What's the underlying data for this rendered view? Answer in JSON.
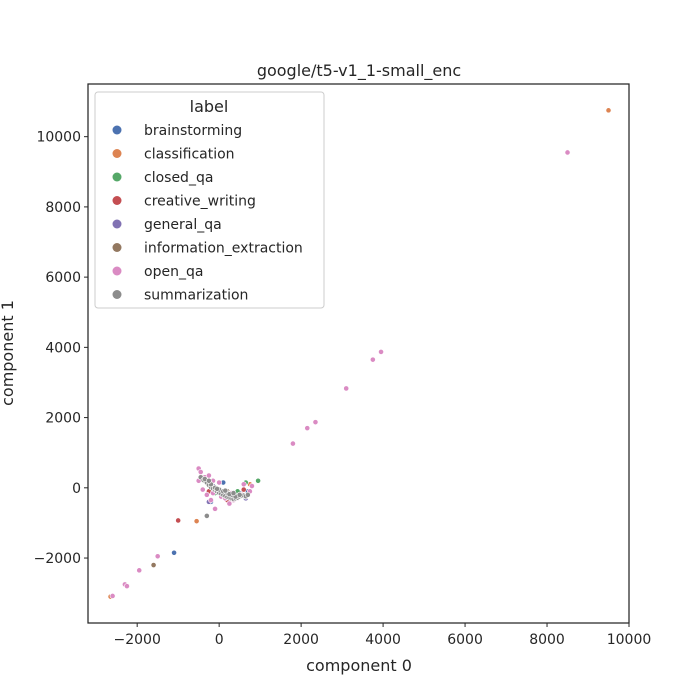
{
  "chart_data": {
    "type": "scatter",
    "title": "google/t5-v1_1-small_enc",
    "xlabel": "component 0",
    "ylabel": "component 1",
    "xlim": [
      -3200,
      10000
    ],
    "ylim": [
      -3850,
      11500
    ],
    "xticks": [
      -2000,
      0,
      2000,
      4000,
      6000,
      8000,
      10000
    ],
    "yticks": [
      -2000,
      0,
      2000,
      4000,
      6000,
      8000,
      10000
    ],
    "grid": false,
    "legend": {
      "title": "label",
      "placement": "top-left"
    },
    "series": [
      {
        "name": "brainstorming",
        "color": "#4c72b0",
        "points": [
          [
            -1100,
            -1850
          ],
          [
            700,
            -100
          ],
          [
            -200,
            -400
          ],
          [
            300,
            -300
          ],
          [
            100,
            150
          ],
          [
            -300,
            200
          ],
          [
            500,
            -150
          ],
          [
            -50,
            -50
          ]
        ]
      },
      {
        "name": "classification",
        "color": "#dd8452",
        "points": [
          [
            9500,
            10750
          ],
          [
            -550,
            -950
          ],
          [
            -2650,
            -3100
          ],
          [
            750,
            100
          ],
          [
            300,
            -200
          ],
          [
            -400,
            300
          ],
          [
            100,
            -100
          ]
        ]
      },
      {
        "name": "closed_qa",
        "color": "#55a868",
        "points": [
          [
            950,
            200
          ],
          [
            650,
            150
          ],
          [
            450,
            -100
          ],
          [
            -100,
            -150
          ],
          [
            200,
            -250
          ],
          [
            -300,
            150
          ]
        ]
      },
      {
        "name": "creative_writing",
        "color": "#c44e52",
        "points": [
          [
            -1000,
            -930
          ],
          [
            -250,
            -100
          ],
          [
            200,
            -350
          ],
          [
            600,
            -50
          ],
          [
            -400,
            250
          ],
          [
            50,
            -200
          ]
        ]
      },
      {
        "name": "general_qa",
        "color": "#8172b3",
        "points": [
          [
            -250,
            -400
          ],
          [
            300,
            -250
          ],
          [
            100,
            -150
          ],
          [
            -150,
            50
          ],
          [
            500,
            -200
          ],
          [
            650,
            -300
          ]
        ]
      },
      {
        "name": "information_extraction",
        "color": "#937860",
        "points": [
          [
            -1600,
            -2200
          ],
          [
            -100,
            -600
          ],
          [
            -300,
            -800
          ],
          [
            400,
            -300
          ],
          [
            200,
            -100
          ],
          [
            -200,
            100
          ],
          [
            0,
            -50
          ]
        ]
      },
      {
        "name": "open_qa",
        "color": "#da8bc3",
        "points": [
          [
            8500,
            9550
          ],
          [
            3950,
            3870
          ],
          [
            3750,
            3650
          ],
          [
            3100,
            2830
          ],
          [
            2350,
            1870
          ],
          [
            2150,
            1700
          ],
          [
            1800,
            1260
          ],
          [
            -1950,
            -2350
          ],
          [
            -2300,
            -2750
          ],
          [
            -2250,
            -2800
          ],
          [
            -2600,
            -3080
          ],
          [
            -1500,
            -1950
          ],
          [
            -500,
            550
          ],
          [
            -450,
            450
          ],
          [
            -350,
            300
          ],
          [
            -250,
            100
          ],
          [
            -150,
            -150
          ],
          [
            -50,
            -100
          ],
          [
            50,
            -250
          ],
          [
            150,
            -300
          ],
          [
            250,
            -450
          ],
          [
            350,
            -350
          ],
          [
            450,
            -300
          ],
          [
            550,
            -200
          ],
          [
            650,
            -250
          ],
          [
            750,
            -100
          ],
          [
            800,
            50
          ],
          [
            -400,
            -50
          ],
          [
            -300,
            -200
          ],
          [
            -200,
            -350
          ],
          [
            -500,
            200
          ],
          [
            0,
            150
          ],
          [
            -100,
            -600
          ],
          [
            600,
            100
          ],
          [
            300,
            -150
          ],
          [
            -250,
            350
          ],
          [
            -150,
            200
          ]
        ]
      },
      {
        "name": "summarization",
        "color": "#8c8c8c",
        "points": [
          [
            -300,
            -800
          ],
          [
            -450,
            300
          ],
          [
            -380,
            220
          ],
          [
            -300,
            150
          ],
          [
            -250,
            80
          ],
          [
            -200,
            20
          ],
          [
            -150,
            -20
          ],
          [
            -100,
            -60
          ],
          [
            -50,
            -100
          ],
          [
            0,
            -140
          ],
          [
            50,
            -170
          ],
          [
            100,
            -200
          ],
          [
            150,
            -230
          ],
          [
            200,
            -260
          ],
          [
            250,
            -280
          ],
          [
            300,
            -300
          ],
          [
            350,
            -320
          ],
          [
            400,
            -300
          ],
          [
            450,
            -280
          ],
          [
            500,
            -250
          ],
          [
            550,
            -230
          ],
          [
            600,
            -220
          ],
          [
            650,
            -240
          ],
          [
            700,
            -200
          ],
          [
            -350,
            250
          ],
          [
            -200,
            100
          ],
          [
            -100,
            0
          ],
          [
            0,
            -50
          ],
          [
            100,
            -100
          ],
          [
            200,
            -150
          ],
          [
            300,
            -200
          ],
          [
            400,
            -250
          ],
          [
            500,
            -200
          ],
          [
            150,
            -80
          ],
          [
            250,
            -180
          ],
          [
            -50,
            -30
          ],
          [
            -250,
            200
          ],
          [
            350,
            -150
          ]
        ]
      }
    ]
  }
}
